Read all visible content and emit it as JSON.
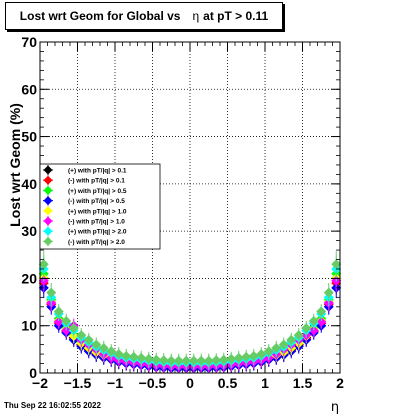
{
  "title": "Lost wrt Geom for Global vs",
  "title_eta": "η",
  "title_suffix": "at pT > 0.11",
  "footer_timestamp": "Thu Sep 22 16:02:55 2022",
  "chart_data": {
    "type": "scatter",
    "title": "Lost wrt Geom for Global vs η at pT > 0.11",
    "xlabel": "η",
    "ylabel": "Lost wrt Geom (%)",
    "xlim": [
      -2,
      2
    ],
    "ylim": [
      0,
      70
    ],
    "xticks": [
      -2,
      -1.5,
      -1,
      -0.5,
      0,
      0.5,
      1,
      1.5,
      2
    ],
    "xtick_labels": [
      "−2",
      "−1.5",
      "−1",
      "−0.5",
      "0",
      "0.5",
      "1",
      "1.5",
      "2"
    ],
    "yticks": [
      0,
      10,
      20,
      30,
      40,
      50,
      60,
      70
    ],
    "grid": true,
    "legend_position": "left-middle",
    "x": [
      -1.95,
      -1.85,
      -1.75,
      -1.65,
      -1.55,
      -1.45,
      -1.35,
      -1.25,
      -1.15,
      -1.05,
      -0.95,
      -0.85,
      -0.75,
      -0.65,
      -0.55,
      -0.45,
      -0.35,
      -0.25,
      -0.15,
      -0.05,
      0.05,
      0.15,
      0.25,
      0.35,
      0.45,
      0.55,
      0.65,
      0.75,
      0.85,
      0.95,
      1.05,
      1.15,
      1.25,
      1.35,
      1.45,
      1.55,
      1.65,
      1.75,
      1.85,
      1.95
    ],
    "series": [
      {
        "name": "(+) with pT/|q| > 0.1",
        "color": "#000000",
        "marker": "diamond",
        "values": [
          20,
          15,
          11,
          9,
          7.5,
          6,
          5,
          4,
          3.5,
          3,
          2.5,
          2.2,
          2,
          1.8,
          1.5,
          1.3,
          1.2,
          1.2,
          1.1,
          1.1,
          1.1,
          1.1,
          1.2,
          1.2,
          1.3,
          1.5,
          1.8,
          2,
          2.2,
          2.5,
          3,
          3.5,
          4,
          5,
          6,
          7.5,
          9,
          11,
          15,
          20
        ]
      },
      {
        "name": "(-) with pT/|q| > 0.1",
        "color": "#ff0000",
        "marker": "diamond",
        "values": [
          19,
          14.5,
          10.5,
          8.8,
          7.2,
          5.8,
          4.8,
          4,
          3.4,
          2.9,
          2.4,
          2.1,
          1.9,
          1.7,
          1.5,
          1.3,
          1.2,
          1.1,
          1.1,
          1,
          1,
          1.1,
          1.1,
          1.2,
          1.3,
          1.5,
          1.7,
          1.9,
          2.1,
          2.4,
          2.9,
          3.4,
          4,
          4.8,
          5.8,
          7.2,
          8.8,
          10.5,
          14.5,
          19
        ]
      },
      {
        "name": "(+) with pT/|q| > 0.5",
        "color": "#00ff00",
        "marker": "diamond",
        "values": [
          21,
          15.5,
          11.5,
          9.5,
          8,
          6.5,
          5.5,
          4.5,
          4,
          3.5,
          3,
          2.6,
          2.4,
          2.2,
          2,
          1.8,
          1.7,
          1.7,
          1.6,
          1.6,
          1.6,
          1.6,
          1.7,
          1.7,
          1.8,
          2,
          2.2,
          2.4,
          2.6,
          3,
          3.5,
          4,
          4.5,
          5.5,
          6.5,
          8,
          9.5,
          11.5,
          15.5,
          21
        ]
      },
      {
        "name": "(-) with pT/|q| > 0.5",
        "color": "#0000ff",
        "marker": "diamond",
        "values": [
          18,
          14,
          10,
          8.5,
          7,
          5.6,
          4.6,
          3.8,
          3.2,
          2.8,
          2.3,
          2,
          1.8,
          1.6,
          1.4,
          1.2,
          1.1,
          1,
          1,
          1,
          1,
          1,
          1,
          1.1,
          1.2,
          1.4,
          1.6,
          1.8,
          2,
          2.3,
          2.8,
          3.2,
          3.8,
          4.6,
          5.6,
          7,
          8.5,
          10,
          14,
          18
        ]
      },
      {
        "name": "(+) with pT/|q| > 1.0",
        "color": "#ffff00",
        "marker": "diamond",
        "values": [
          20,
          15,
          11,
          9.2,
          7.8,
          6.3,
          5.3,
          4.4,
          3.8,
          3.3,
          2.8,
          2.5,
          2.3,
          2.1,
          1.9,
          1.7,
          1.6,
          1.5,
          1.5,
          1.5,
          1.5,
          1.5,
          1.5,
          1.6,
          1.7,
          1.9,
          2.1,
          2.3,
          2.5,
          2.8,
          3.3,
          3.8,
          4.4,
          5.3,
          6.3,
          7.8,
          9.2,
          11,
          15,
          20
        ]
      },
      {
        "name": "(-) with pT/|q| > 1.0",
        "color": "#ff00ff",
        "marker": "diamond",
        "values": [
          19.5,
          14.8,
          10.8,
          9,
          10,
          7,
          6,
          5,
          4,
          3.2,
          2.7,
          2.4,
          2.2,
          2,
          1.8,
          1.6,
          1.5,
          1.4,
          1.4,
          1.4,
          1.4,
          1.4,
          1.4,
          1.5,
          1.6,
          1.8,
          2,
          2.2,
          2.4,
          2.7,
          3.2,
          4,
          5,
          6,
          7,
          8,
          9,
          10.8,
          14.8,
          19.5
        ]
      },
      {
        "name": "(+) with pT/|q| > 2.0",
        "color": "#00ffff",
        "marker": "diamond",
        "values": [
          22,
          16,
          12.5,
          10.5,
          9,
          7.5,
          6.5,
          5.5,
          4.8,
          4.2,
          3.6,
          3.2,
          3,
          2.8,
          2.6,
          2.4,
          2.3,
          2.2,
          2.2,
          2.2,
          2.2,
          2.2,
          2.2,
          2.3,
          2.4,
          2.6,
          2.8,
          3,
          3.2,
          3.6,
          4.2,
          4.8,
          5.5,
          6.5,
          7.5,
          9,
          10.5,
          12.5,
          16,
          22
        ]
      },
      {
        "name": "(-) with pT/|q| > 2.0",
        "color": "#66cc66",
        "marker": "diamond",
        "values": [
          23,
          17,
          13,
          11,
          9.5,
          8,
          7,
          6,
          5.3,
          4.6,
          4,
          3.6,
          3.4,
          3.2,
          3,
          2.8,
          2.7,
          2.6,
          2.6,
          2.6,
          2.6,
          2.6,
          2.6,
          2.7,
          2.8,
          3,
          3.2,
          3.4,
          3.6,
          4,
          4.6,
          5.3,
          6,
          7,
          8,
          9.5,
          11,
          13,
          17,
          23
        ]
      }
    ]
  }
}
